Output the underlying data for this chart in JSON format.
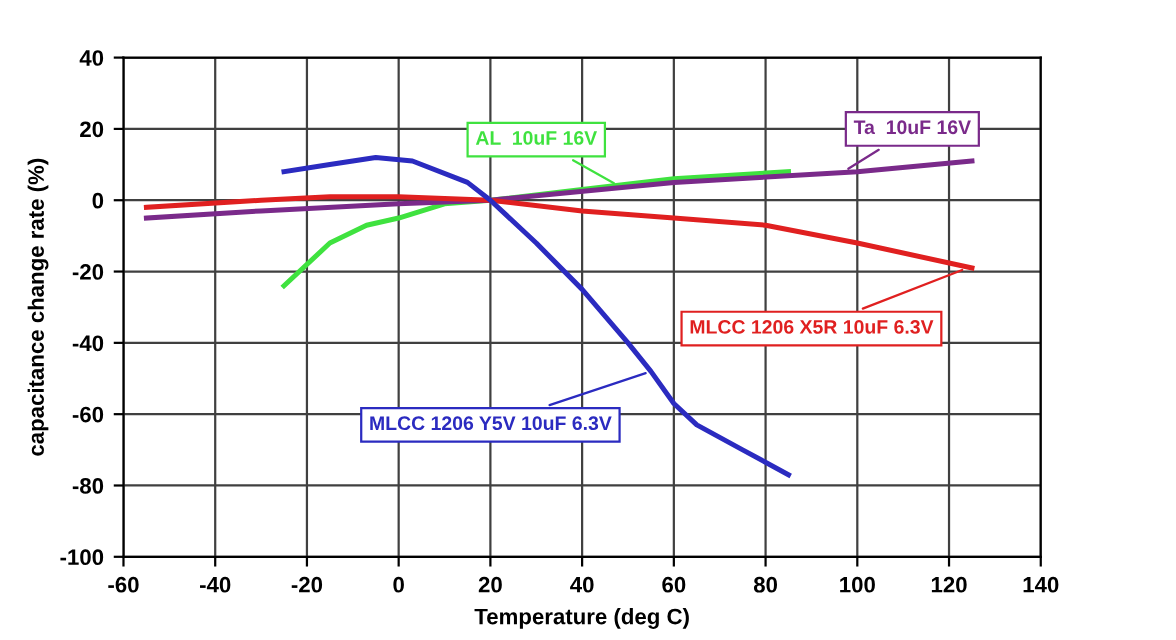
{
  "chart_data": {
    "type": "line",
    "xlabel": "Temperature (deg C)",
    "ylabel": "capacitance change rate (%)",
    "xlim": [
      -60,
      140
    ],
    "xticks": [
      -60,
      -40,
      -20,
      0,
      20,
      40,
      60,
      80,
      100,
      120,
      140
    ],
    "ylim": [
      -100,
      40
    ],
    "yticks": [
      -100,
      -80,
      -60,
      -40,
      -20,
      0,
      20,
      40
    ],
    "grid": true,
    "series": [
      {
        "name": "AL  10uF 16V",
        "color": "#3fe23f",
        "x": [
          -25,
          -15,
          -7,
          0,
          10,
          20,
          40,
          60,
          85
        ],
        "values": [
          -24,
          -12,
          -7,
          -5,
          -1,
          0,
          3,
          6,
          8
        ]
      },
      {
        "name": "Ta  10uF 16V",
        "color": "#7a2a8a",
        "x": [
          -55,
          -30,
          0,
          20,
          60,
          100,
          125
        ],
        "values": [
          -5,
          -3,
          -1,
          0,
          5,
          8,
          11
        ]
      },
      {
        "name": "MLCC 1206 X5R 10uF 6.3V",
        "color": "#e02020",
        "x": [
          -55,
          -30,
          -15,
          0,
          10,
          20,
          40,
          60,
          80,
          100,
          125
        ],
        "values": [
          -2,
          0,
          1,
          1,
          0.5,
          0,
          -3,
          -5,
          -7,
          -12,
          -19
        ]
      },
      {
        "name": "MLCC 1206 Y5V 10uF 6.3V",
        "color": "#2b2bc0",
        "x": [
          -25,
          -15,
          -5,
          3,
          15,
          20,
          30,
          40,
          50,
          55,
          60,
          65,
          75,
          85
        ],
        "values": [
          8,
          10,
          12,
          11,
          5,
          0,
          -12,
          -25,
          -40,
          -48,
          -57,
          -63,
          -70,
          -77
        ]
      }
    ]
  }
}
